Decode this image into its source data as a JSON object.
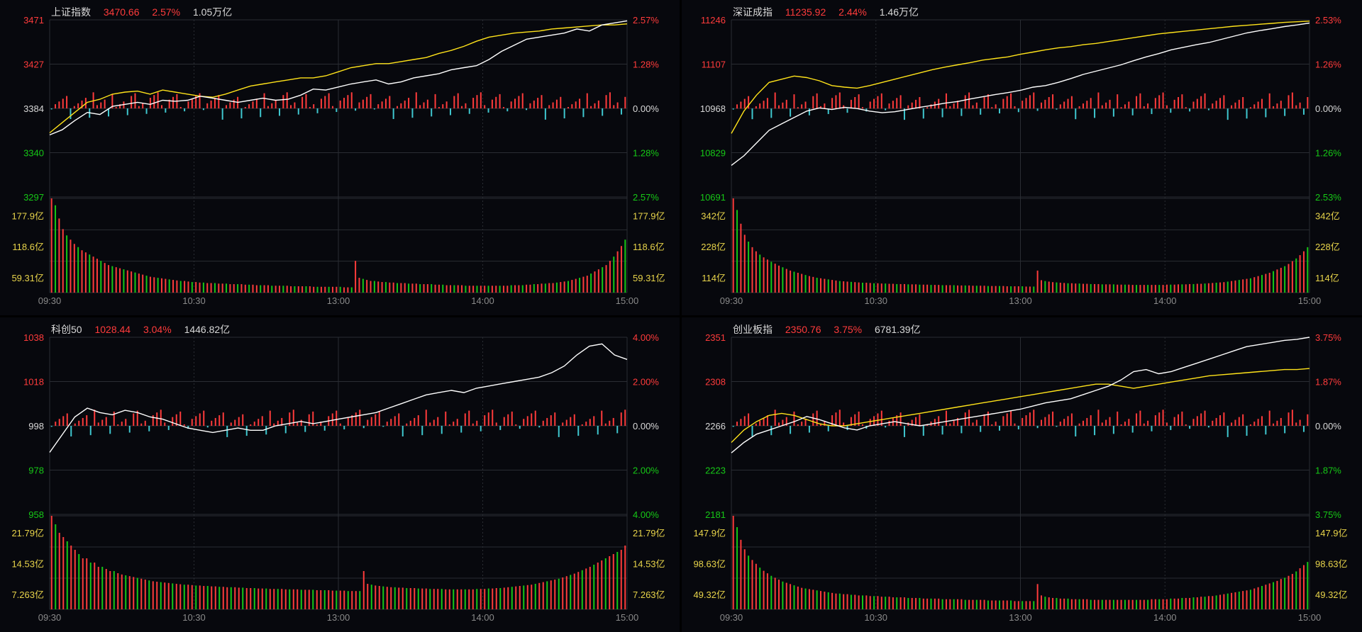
{
  "colors": {
    "up": "#ff3b3b",
    "down": "#16c816",
    "tick_barDown": "#3fc7cf",
    "white_line": "#ffffff",
    "yellow_line": "#ffe31a",
    "vol_label": "#e8d44a",
    "grid": "#2a2d33",
    "bg": "#07080d"
  },
  "x_axis_ticks": [
    "09:30",
    "10:30",
    "13:00",
    "14:00",
    "15:00"
  ],
  "chart_data": [
    {
      "type": "line",
      "name": "上证指数",
      "price": "3470.66",
      "change_pct": "2.57%",
      "amount": "1.05万亿",
      "y_labels_left": [
        "3471",
        "3427",
        "3384",
        "3340",
        "3297"
      ],
      "y_labels_right": [
        "2.57%",
        "1.28%",
        "0.00%",
        "1.28%",
        "2.57%"
      ],
      "vol_labels": [
        "177.9亿",
        "118.6亿",
        "59.31亿"
      ],
      "ylim": [
        3297,
        3471
      ],
      "base": 3384,
      "price_line": [
        3358,
        3363,
        3372,
        3380,
        3378,
        3386,
        3388,
        3390,
        3388,
        3392,
        3391,
        3392,
        3396,
        3394,
        3392,
        3390,
        3392,
        3394,
        3392,
        3393,
        3397,
        3403,
        3402,
        3405,
        3408,
        3410,
        3412,
        3408,
        3410,
        3414,
        3416,
        3418,
        3422,
        3424,
        3426,
        3432,
        3440,
        3446,
        3452,
        3454,
        3456,
        3458,
        3462,
        3460,
        3466,
        3468,
        3470
      ],
      "avg_line": [
        3360,
        3370,
        3380,
        3390,
        3393,
        3398,
        3400,
        3401,
        3398,
        3402,
        3400,
        3398,
        3396,
        3395,
        3398,
        3402,
        3406,
        3408,
        3410,
        3412,
        3414,
        3414,
        3416,
        3420,
        3424,
        3426,
        3428,
        3428,
        3430,
        3432,
        3434,
        3438,
        3441,
        3445,
        3450,
        3454,
        3456,
        3458,
        3459,
        3460,
        3462,
        3463,
        3464,
        3465,
        3466,
        3466,
        3467
      ],
      "volume": [
        178,
        165,
        140,
        120,
        108,
        100,
        92,
        86,
        80,
        76,
        72,
        68,
        64,
        60,
        56,
        52,
        50,
        48,
        46,
        44,
        42,
        40,
        38,
        36,
        34,
        32,
        30,
        29,
        28,
        27,
        26,
        25,
        24,
        23,
        22,
        22,
        21,
        20,
        20,
        19,
        19,
        18,
        18,
        18,
        17,
        17,
        17,
        16,
        16,
        16,
        16,
        15,
        15,
        15,
        14,
        14,
        14,
        14,
        13,
        13,
        13,
        13,
        13,
        12,
        12,
        12,
        12,
        12,
        12,
        11,
        11,
        11,
        11,
        11,
        11,
        11,
        11,
        10,
        10,
        10,
        60,
        28,
        26,
        24,
        22,
        22,
        21,
        20,
        20,
        19,
        19,
        18,
        18,
        18,
        17,
        17,
        17,
        16,
        16,
        16,
        16,
        15,
        15,
        15,
        14,
        14,
        14,
        14,
        14,
        13,
        13,
        13,
        13,
        13,
        13,
        13,
        13,
        13,
        13,
        13,
        13,
        14,
        14,
        14,
        14,
        15,
        15,
        16,
        16,
        17,
        17,
        18,
        18,
        19,
        20,
        21,
        22,
        24,
        26,
        28,
        30,
        32,
        36,
        40,
        44,
        48,
        52,
        60,
        68,
        78,
        88,
        100
      ]
    },
    {
      "type": "line",
      "name": "深证成指",
      "price": "11235.92",
      "change_pct": "2.44%",
      "amount": "1.46万亿",
      "y_labels_left": [
        "11246",
        "11107",
        "10968",
        "10829",
        "10691"
      ],
      "y_labels_right": [
        "2.53%",
        "1.26%",
        "0.00%",
        "1.26%",
        "2.53%"
      ],
      "vol_labels": [
        "342亿",
        "228亿",
        "114亿"
      ],
      "ylim": [
        10691,
        11246
      ],
      "base": 10968,
      "price_line": [
        10790,
        10820,
        10860,
        10900,
        10920,
        10940,
        10960,
        10970,
        10965,
        10972,
        10968,
        10960,
        10955,
        10958,
        10965,
        10972,
        10978,
        10985,
        10990,
        10998,
        11005,
        11012,
        11018,
        11025,
        11035,
        11040,
        11050,
        11062,
        11075,
        11085,
        11095,
        11105,
        11118,
        11130,
        11140,
        11152,
        11160,
        11168,
        11175,
        11185,
        11195,
        11205,
        11212,
        11218,
        11225,
        11230,
        11236
      ],
      "avg_line": [
        10890,
        10960,
        11010,
        11050,
        11060,
        11070,
        11065,
        11055,
        11040,
        11035,
        11032,
        11040,
        11050,
        11060,
        11070,
        11080,
        11090,
        11098,
        11105,
        11112,
        11120,
        11125,
        11130,
        11138,
        11145,
        11152,
        11158,
        11162,
        11168,
        11172,
        11178,
        11184,
        11190,
        11196,
        11202,
        11206,
        11210,
        11214,
        11218,
        11222,
        11226,
        11229,
        11232,
        11235,
        11238,
        11240,
        11242
      ],
      "volume": [
        342,
        300,
        250,
        210,
        185,
        165,
        150,
        138,
        128,
        120,
        112,
        105,
        98,
        92,
        86,
        80,
        76,
        72,
        68,
        64,
        60,
        57,
        54,
        52,
        50,
        48,
        46,
        44,
        42,
        41,
        40,
        39,
        38,
        37,
        36,
        36,
        35,
        34,
        34,
        33,
        33,
        32,
        32,
        31,
        31,
        31,
        30,
        30,
        30,
        29,
        29,
        29,
        28,
        28,
        28,
        27,
        27,
        27,
        27,
        26,
        26,
        26,
        26,
        25,
        25,
        25,
        25,
        24,
        24,
        24,
        24,
        24,
        23,
        23,
        23,
        23,
        23,
        22,
        22,
        22,
        80,
        45,
        42,
        40,
        38,
        37,
        36,
        35,
        34,
        34,
        33,
        33,
        32,
        32,
        31,
        31,
        31,
        30,
        30,
        30,
        30,
        29,
        29,
        29,
        29,
        28,
        28,
        28,
        28,
        28,
        28,
        28,
        28,
        28,
        29,
        29,
        29,
        30,
        30,
        30,
        31,
        31,
        32,
        32,
        33,
        34,
        35,
        36,
        37,
        38,
        40,
        42,
        44,
        46,
        48,
        50,
        52,
        56,
        60,
        64,
        68,
        72,
        78,
        84,
        90,
        96,
        104,
        114,
        124,
        136,
        150,
        165
      ]
    },
    {
      "type": "line",
      "name": "科创50",
      "price": "1028.44",
      "change_pct": "3.04%",
      "amount": "1446.82亿",
      "y_labels_left": [
        "1038",
        "1018",
        "998",
        "978",
        "958"
      ],
      "y_labels_right": [
        "4.00%",
        "2.00%",
        "0.00%",
        "2.00%",
        "4.00%"
      ],
      "vol_labels": [
        "21.79亿",
        "14.53亿",
        "7.263亿"
      ],
      "ylim": [
        958,
        1038
      ],
      "base": 998,
      "price_line": [
        986,
        994,
        1002,
        1006,
        1004,
        1003,
        1005,
        1004,
        1002,
        1001,
        999,
        997,
        996,
        995,
        996,
        997,
        996,
        996,
        998,
        999,
        1000,
        999,
        1000,
        1001,
        1002,
        1003,
        1004,
        1006,
        1008,
        1010,
        1012,
        1013,
        1014,
        1013,
        1015,
        1016,
        1017,
        1018,
        1019,
        1020,
        1022,
        1025,
        1030,
        1034,
        1035,
        1030,
        1028
      ],
      "avg_line": [],
      "volume": [
        22,
        20,
        18,
        17,
        16,
        15,
        14,
        13,
        12,
        12,
        11,
        11,
        10,
        10,
        9.5,
        9,
        9,
        8.5,
        8.2,
        8,
        7.8,
        7.6,
        7.4,
        7.2,
        7,
        6.8,
        6.6,
        6.5,
        6.4,
        6.3,
        6.2,
        6.1,
        6,
        5.9,
        5.8,
        5.8,
        5.7,
        5.6,
        5.6,
        5.5,
        5.5,
        5.4,
        5.4,
        5.3,
        5.3,
        5.2,
        5.2,
        5.2,
        5.1,
        5.1,
        5,
        5,
        5,
        4.9,
        4.9,
        4.9,
        4.8,
        4.8,
        4.8,
        4.8,
        4.7,
        4.7,
        4.7,
        4.7,
        4.6,
        4.6,
        4.6,
        4.6,
        4.5,
        4.5,
        4.5,
        4.5,
        4.4,
        4.4,
        4.4,
        4.4,
        4.3,
        4.3,
        4.3,
        4.3,
        9,
        6,
        5.8,
        5.6,
        5.5,
        5.4,
        5.3,
        5.2,
        5.2,
        5.1,
        5.1,
        5,
        5,
        5,
        4.9,
        4.9,
        4.9,
        4.8,
        4.8,
        4.8,
        4.8,
        4.7,
        4.7,
        4.7,
        4.7,
        4.7,
        4.7,
        4.7,
        4.7,
        4.8,
        4.8,
        4.8,
        4.9,
        4.9,
        5,
        5,
        5.1,
        5.2,
        5.3,
        5.4,
        5.5,
        5.6,
        5.7,
        5.8,
        6,
        6.2,
        6.4,
        6.6,
        6.8,
        7,
        7.2,
        7.5,
        7.8,
        8.1,
        8.4,
        8.8,
        9.2,
        9.6,
        10,
        10.5,
        11,
        11.5,
        12,
        12.5,
        13,
        13.5,
        14,
        15
      ]
    },
    {
      "type": "line",
      "name": "创业板指",
      "price": "2350.76",
      "change_pct": "3.75%",
      "amount": "6781.39亿",
      "y_labels_left": [
        "2351",
        "2308",
        "2266",
        "2223",
        "2181"
      ],
      "y_labels_right": [
        "3.75%",
        "1.87%",
        "0.00%",
        "1.87%",
        "3.75%"
      ],
      "vol_labels": [
        "147.9亿",
        "98.63亿",
        "49.32亿"
      ],
      "ylim": [
        2181,
        2351
      ],
      "base": 2266,
      "price_line": [
        2240,
        2250,
        2258,
        2262,
        2266,
        2270,
        2275,
        2272,
        2268,
        2264,
        2262,
        2266,
        2268,
        2270,
        2268,
        2266,
        2268,
        2270,
        2272,
        2274,
        2276,
        2278,
        2280,
        2282,
        2285,
        2288,
        2290,
        2292,
        2296,
        2300,
        2304,
        2310,
        2318,
        2320,
        2316,
        2318,
        2322,
        2326,
        2330,
        2334,
        2338,
        2342,
        2344,
        2346,
        2348,
        2349,
        2351
      ],
      "avg_line": [
        2250,
        2262,
        2270,
        2276,
        2278,
        2276,
        2272,
        2268,
        2266,
        2266,
        2268,
        2270,
        2272,
        2274,
        2276,
        2278,
        2280,
        2282,
        2284,
        2286,
        2288,
        2290,
        2292,
        2294,
        2296,
        2298,
        2300,
        2302,
        2304,
        2306,
        2306,
        2304,
        2302,
        2304,
        2306,
        2308,
        2310,
        2312,
        2314,
        2315,
        2316,
        2317,
        2318,
        2319,
        2320,
        2320,
        2321
      ],
      "volume": [
        148,
        130,
        110,
        95,
        85,
        78,
        72,
        66,
        61,
        57,
        53,
        50,
        47,
        44,
        42,
        40,
        38,
        36,
        34,
        33,
        32,
        31,
        30,
        29,
        28,
        27,
        26,
        25,
        25,
        24,
        24,
        23,
        23,
        22,
        22,
        22,
        21,
        21,
        21,
        20,
        20,
        20,
        19,
        19,
        19,
        19,
        18,
        18,
        18,
        18,
        17,
        17,
        17,
        17,
        17,
        16,
        16,
        16,
        16,
        16,
        16,
        15,
        15,
        15,
        15,
        15,
        15,
        14,
        14,
        14,
        14,
        14,
        14,
        14,
        13,
        13,
        13,
        13,
        13,
        13,
        40,
        22,
        20,
        19,
        18,
        18,
        17,
        17,
        17,
        16,
        16,
        16,
        16,
        16,
        15,
        15,
        15,
        15,
        15,
        15,
        15,
        15,
        15,
        15,
        15,
        15,
        15,
        15,
        15,
        15,
        16,
        16,
        16,
        16,
        16,
        17,
        17,
        17,
        18,
        18,
        18,
        19,
        19,
        20,
        20,
        21,
        21,
        22,
        23,
        24,
        25,
        26,
        27,
        28,
        29,
        30,
        31,
        33,
        35,
        37,
        39,
        41,
        43,
        45,
        48,
        50,
        53,
        56,
        60,
        65,
        70,
        75
      ]
    }
  ]
}
